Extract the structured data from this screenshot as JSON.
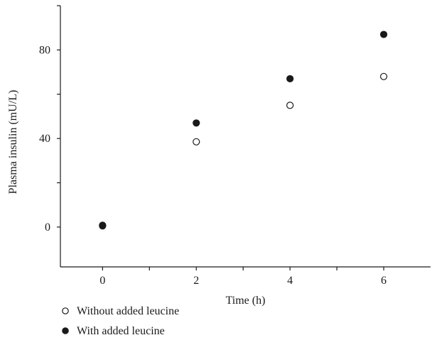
{
  "chart_data": {
    "type": "scatter",
    "xlabel": "Time (h)",
    "ylabel": "Plasma insulin (mU/L)",
    "xlim": [
      -0.9,
      7.0
    ],
    "ylim": [
      -18,
      100
    ],
    "x_ticks": [
      0,
      2,
      4,
      6
    ],
    "x_minor_ticks": [
      1,
      3,
      5
    ],
    "y_ticks": [
      0,
      40,
      80
    ],
    "y_minor_ticks": [
      -20,
      20,
      60,
      100
    ],
    "grid": false,
    "legend_position": "bottom-left",
    "series": [
      {
        "name": "Without added leucine",
        "marker": "open-circle",
        "color": "#1a1a1a",
        "x": [
          0,
          2,
          4,
          6
        ],
        "y": [
          0.5,
          38.5,
          55,
          68
        ]
      },
      {
        "name": "With added leucine",
        "marker": "filled-circle",
        "color": "#1a1a1a",
        "x": [
          0,
          2,
          4,
          6
        ],
        "y": [
          0.8,
          47,
          67,
          87
        ]
      }
    ]
  }
}
